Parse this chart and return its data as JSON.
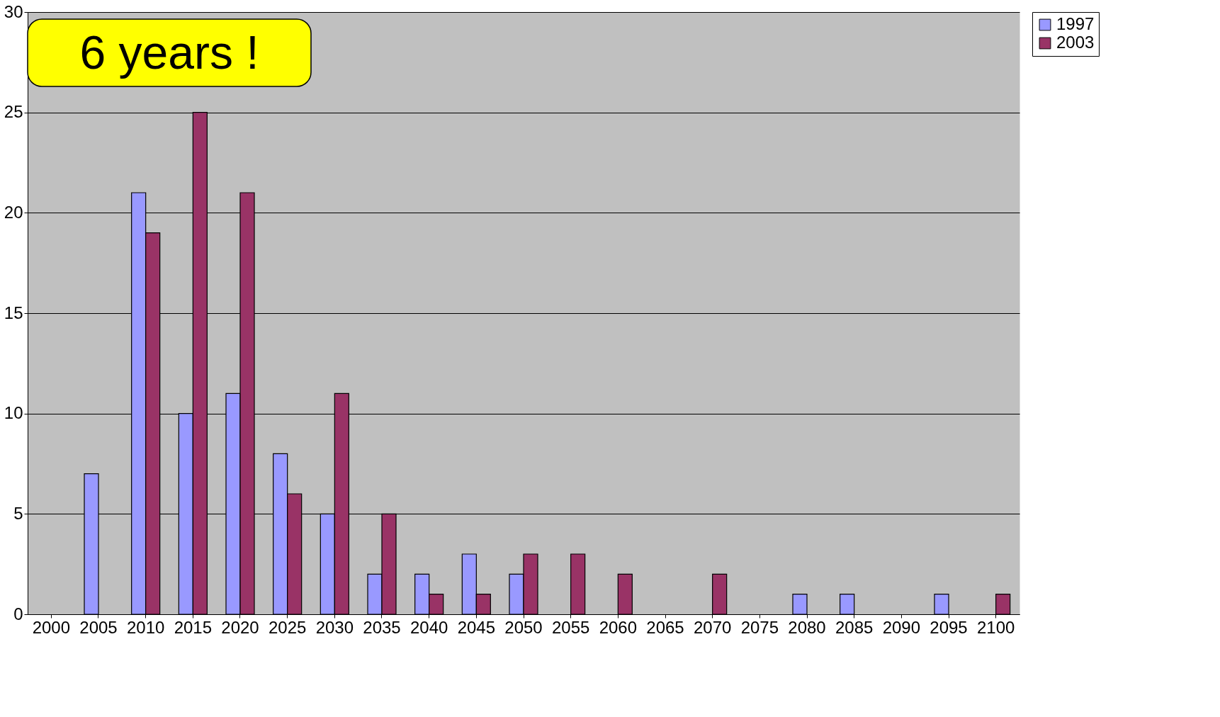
{
  "chart_data": {
    "type": "bar",
    "categories": [
      "2000",
      "2005",
      "2010",
      "2015",
      "2020",
      "2025",
      "2030",
      "2035",
      "2040",
      "2045",
      "2050",
      "2055",
      "2060",
      "2065",
      "2070",
      "2075",
      "2080",
      "2085",
      "2090",
      "2095",
      "2100"
    ],
    "series": [
      {
        "name": "1997",
        "color": "#9999ff",
        "values": [
          null,
          7,
          21,
          10,
          11,
          8,
          5,
          2,
          2,
          3,
          2,
          null,
          null,
          null,
          null,
          null,
          1,
          1,
          null,
          1,
          null
        ]
      },
      {
        "name": "2003",
        "color": "#993366",
        "values": [
          null,
          null,
          19,
          25,
          21,
          6,
          11,
          5,
          1,
          1,
          3,
          3,
          2,
          null,
          2,
          null,
          null,
          null,
          null,
          null,
          1
        ]
      }
    ],
    "ylim": [
      0,
      30
    ],
    "yticks": [
      0,
      5,
      10,
      15,
      20,
      25,
      30
    ],
    "grid": "y",
    "legend": "right",
    "annotations": [
      "6 years !"
    ]
  }
}
